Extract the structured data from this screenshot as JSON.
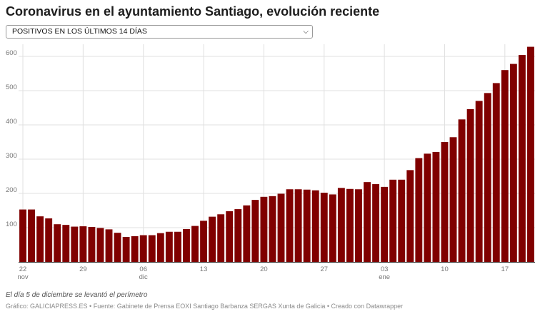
{
  "title": "Coronavirus en el ayuntamiento Santiago, evolución reciente",
  "dropdown": {
    "selected": "POSITIVOS EN LOS ÚLTIMOS 14 DÍAS",
    "icon": "chevron-down-icon"
  },
  "note": "El día 5 de diciembre se levantó el perímetro",
  "footer": "Gráfico: GALICIAPRESS.ES • Fuente: Gabinete de Prensa EOXI Santiago Barbanza SERGAS Xunta de Galicia • Creado con Datawrapper",
  "colors": {
    "bar": "#800000",
    "grid": "#e0e0e0",
    "text": "#777777"
  },
  "chart_data": {
    "type": "bar",
    "title": "",
    "xlabel": "",
    "ylabel": "",
    "ylim": [
      0,
      630
    ],
    "yticks": [
      100,
      200,
      300,
      400,
      500,
      600
    ],
    "grid": true,
    "x_tick_labels": [
      {
        "date": "2020-11-22",
        "label": "22",
        "sublabel": "nov"
      },
      {
        "date": "2020-11-29",
        "label": "29",
        "sublabel": ""
      },
      {
        "date": "2020-12-06",
        "label": "06",
        "sublabel": "dic"
      },
      {
        "date": "2020-12-13",
        "label": "13",
        "sublabel": ""
      },
      {
        "date": "2020-12-20",
        "label": "20",
        "sublabel": ""
      },
      {
        "date": "2020-12-27",
        "label": "27",
        "sublabel": ""
      },
      {
        "date": "2021-01-03",
        "label": "03",
        "sublabel": "ene"
      },
      {
        "date": "2021-01-10",
        "label": "10",
        "sublabel": ""
      },
      {
        "date": "2021-01-17",
        "label": "17",
        "sublabel": ""
      }
    ],
    "categories": [
      "2020-11-22",
      "2020-11-23",
      "2020-11-24",
      "2020-11-25",
      "2020-11-26",
      "2020-11-27",
      "2020-11-28",
      "2020-11-29",
      "2020-11-30",
      "2020-12-01",
      "2020-12-02",
      "2020-12-03",
      "2020-12-04",
      "2020-12-05",
      "2020-12-06",
      "2020-12-07",
      "2020-12-08",
      "2020-12-09",
      "2020-12-10",
      "2020-12-11",
      "2020-12-12",
      "2020-12-13",
      "2020-12-14",
      "2020-12-15",
      "2020-12-16",
      "2020-12-17",
      "2020-12-18",
      "2020-12-19",
      "2020-12-20",
      "2020-12-21",
      "2020-12-22",
      "2020-12-23",
      "2020-12-24",
      "2020-12-25",
      "2020-12-26",
      "2020-12-27",
      "2020-12-28",
      "2020-12-29",
      "2020-12-30",
      "2020-12-31",
      "2021-01-01",
      "2021-01-02",
      "2021-01-03",
      "2021-01-04",
      "2021-01-05",
      "2021-01-06",
      "2021-01-07",
      "2021-01-08",
      "2021-01-09",
      "2021-01-10",
      "2021-01-11",
      "2021-01-12",
      "2021-01-13",
      "2021-01-14",
      "2021-01-15",
      "2021-01-16",
      "2021-01-17",
      "2021-01-18",
      "2021-01-19",
      "2021-01-20"
    ],
    "values": [
      153,
      153,
      133,
      127,
      110,
      108,
      103,
      104,
      102,
      99,
      95,
      85,
      73,
      75,
      78,
      78,
      84,
      88,
      88,
      96,
      105,
      120,
      132,
      139,
      148,
      154,
      165,
      181,
      190,
      192,
      199,
      212,
      212,
      211,
      209,
      202,
      197,
      216,
      213,
      212,
      233,
      227,
      219,
      240,
      240,
      268,
      303,
      316,
      321,
      350,
      364,
      416,
      446,
      470,
      493,
      522,
      560,
      578,
      604,
      628
    ]
  }
}
